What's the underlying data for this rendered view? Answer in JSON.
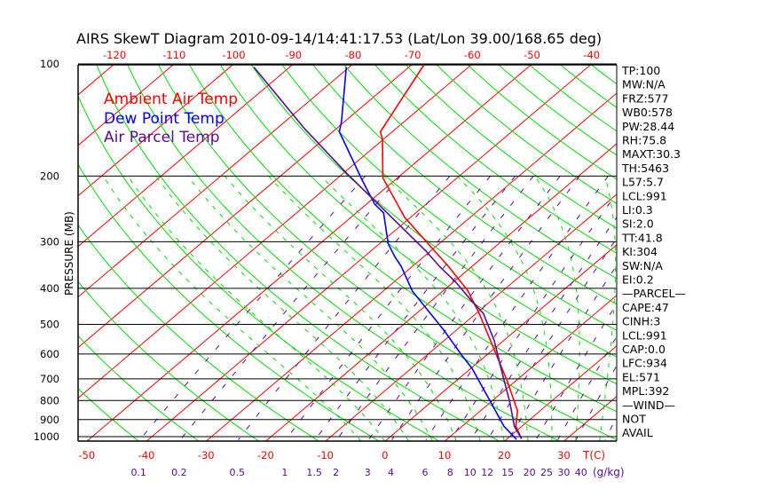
{
  "chart_data": {
    "type": "line",
    "subtype": "skew-t",
    "title": "AIRS SkewT Diagram 2010-09-14/14:41:17.53 (Lat/Lon 39.00/168.65 deg)",
    "ylabel": "PRESSURE (MB)",
    "xlabel": "T(C)",
    "mixing_ratio_label": "(g/kg)",
    "pressure_ticks": [
      "100",
      "200",
      "300",
      "400",
      "500",
      "600",
      "700",
      "800",
      "900",
      "1000"
    ],
    "pressure_values": [
      100,
      200,
      300,
      400,
      500,
      600,
      700,
      800,
      900,
      1000
    ],
    "pressure_range": [
      100,
      1029
    ],
    "top_temp_ticks": [
      "-120",
      "-110",
      "-100",
      "-90",
      "-80",
      "-70",
      "-60",
      "-50",
      "-40"
    ],
    "top_temp_values": [
      -120,
      -110,
      -100,
      -90,
      -80,
      -70,
      -60,
      -50,
      -40
    ],
    "bottom_temp_ticks": [
      "-50",
      "-40",
      "-30",
      "-20",
      "-10",
      "0",
      "10",
      "20",
      "30"
    ],
    "bottom_temp_values": [
      -50,
      -40,
      -30,
      -20,
      -10,
      0,
      10,
      20,
      30
    ],
    "mixing_ratio_ticks": [
      "0.1",
      "0.2",
      "0.5",
      "1",
      "1.5",
      "2",
      "3",
      "4",
      "6",
      "8",
      "10",
      "12",
      "15",
      "20",
      "25",
      "30",
      "40"
    ],
    "mixing_ratio_values": [
      0.1,
      0.2,
      0.5,
      1,
      1.5,
      2,
      3,
      4,
      6,
      8,
      10,
      12,
      15,
      20,
      25,
      30,
      40
    ],
    "legend": [
      {
        "label": "Ambient Air Temp",
        "color": "#ff0000"
      },
      {
        "label": "Dew Point Temp",
        "color": "#0000ff"
      },
      {
        "label": "Air Parcel Temp",
        "color": "#5a0a96"
      }
    ],
    "legend_position": "top-left",
    "series": [
      {
        "name": "Ambient Air Temp",
        "color": "#ff0000",
        "p": [
          1013,
          938,
          852,
          706,
          467,
          405,
          349,
          258,
          202,
          160,
          152,
          100
        ],
        "t": [
          22.4,
          19,
          16.2,
          8.4,
          -9.5,
          -16,
          -24,
          -41,
          -52.5,
          -60,
          -62,
          -68
        ]
      },
      {
        "name": "Dew Point Temp",
        "color": "#0000ff",
        "p": [
          1017,
          938,
          808,
          656,
          604,
          518,
          407,
          349,
          330,
          304,
          251,
          238,
          204,
          152,
          143,
          102
        ],
        "t": [
          21.7,
          17,
          10,
          0.2,
          -4.2,
          -12.1,
          -25.1,
          -31.9,
          -34.7,
          -38.5,
          -45.4,
          -48.6,
          -55.7,
          -68.9,
          -70.5,
          -80.5
        ]
      },
      {
        "name": "Air Parcel Temp",
        "color": "#5a0a96",
        "p": [
          1013,
          938,
          808,
          686,
          551,
          467,
          435,
          385,
          349,
          318,
          234,
          196,
          149,
          102
        ],
        "t": [
          22.4,
          18.75,
          13.2,
          6.8,
          -1.7,
          -8.8,
          -12.9,
          -19.6,
          -25.5,
          -30.7,
          -49,
          -59.6,
          -75.4,
          -96
        ]
      }
    ],
    "colors": {
      "isotherm": "#ff0000",
      "dry_adiabat": "#00dd00",
      "moist_adiabat": "#00dd00",
      "mixing_ratio": "#5a0a96",
      "axis": "#000000"
    }
  },
  "stats": [
    "TP:100",
    "MW:N/A",
    "FRZ:577",
    "WB0:578",
    "PW:28.44",
    "RH:75.8",
    "MAXT:30.3",
    "TH:5463",
    "L57:5.7",
    "LCL:991",
    "LI:0.3",
    "SI:2.0",
    "TT:41.8",
    "KI:304",
    "SW:N/A",
    "EI:0.2",
    "—PARCEL—",
    "CAPE:47",
    "CINH:3",
    "LCL:991",
    "CAP:0.0",
    "LFC:934",
    "EL:571",
    "MPL:392",
    "—WIND—",
    "NOT",
    "AVAIL"
  ]
}
